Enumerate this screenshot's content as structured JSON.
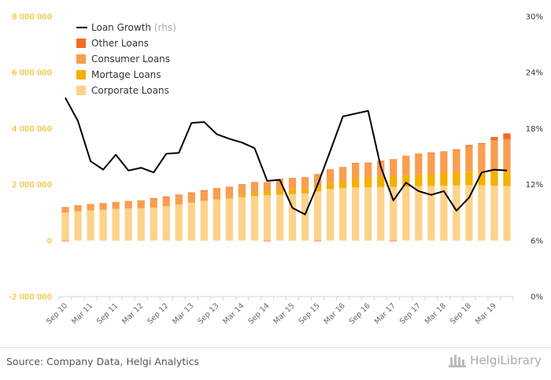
{
  "chart_data": {
    "type": "bar",
    "subtype": "stacked bar with line on secondary axis",
    "categories": [
      "Sep 10",
      "Dec 10",
      "Mar 11",
      "Jun 11",
      "Sep 11",
      "Dec 11",
      "Mar 12",
      "Jun 12",
      "Sep 12",
      "Dec 12",
      "Mar 13",
      "Jun 13",
      "Sep 13",
      "Dec 13",
      "Mar 14",
      "Jun 14",
      "Sep 14",
      "Dec 14",
      "Mar 15",
      "Jun 15",
      "Sep 15",
      "Dec 15",
      "Mar 16",
      "Jun 16",
      "Sep 16",
      "Dec 16",
      "Mar 17",
      "Jun 17",
      "Sep 17",
      "Dec 17",
      "Mar 18",
      "Jun 18",
      "Sep 18",
      "Dec 18",
      "Mar 19",
      "Jun 19"
    ],
    "x_tick_labels": [
      "Sep 10",
      "Mar 11",
      "Sep 11",
      "Mar 12",
      "Sep 12",
      "Mar 13",
      "Sep 13",
      "Mar 14",
      "Sep 14",
      "Mar 15",
      "Sep 15",
      "Mar 16",
      "Sep 16",
      "Mar 17",
      "Sep 17",
      "Mar 18",
      "Sep 18",
      "Mar 19"
    ],
    "series": [
      {
        "name": "Corporate Loans",
        "color": "#fdd28a",
        "values": [
          1000000,
          1050000,
          1080000,
          1100000,
          1130000,
          1150000,
          1160000,
          1180000,
          1230000,
          1290000,
          1360000,
          1420000,
          1470000,
          1500000,
          1550000,
          1590000,
          1620000,
          1640000,
          1660000,
          1680000,
          1760000,
          1840000,
          1880000,
          1900000,
          1910000,
          1910000,
          1920000,
          1930000,
          1940000,
          1950000,
          1960000,
          1970000,
          1980000,
          1970000,
          1960000,
          1950000
        ]
      },
      {
        "name": "Mortage Loans",
        "color": "#f5b000",
        "values": [
          0,
          0,
          0,
          0,
          0,
          0,
          0,
          0,
          0,
          0,
          0,
          0,
          0,
          0,
          50000,
          100000,
          170000,
          190000,
          180000,
          190000,
          170000,
          180000,
          250000,
          300000,
          350000,
          370000,
          390000,
          400000,
          420000,
          430000,
          450000,
          470000,
          480000,
          500000,
          520000,
          530000
        ]
      },
      {
        "name": "Consumer Loans",
        "color": "#f99e4f",
        "values": [
          200000,
          215000,
          225000,
          240000,
          250000,
          265000,
          280000,
          300000,
          315000,
          330000,
          340000,
          360000,
          380000,
          400000,
          390000,
          380000,
          300000,
          350000,
          400000,
          400000,
          450000,
          500000,
          500000,
          550000,
          500000,
          550000,
          600000,
          700000,
          750000,
          750000,
          780000,
          800000,
          900000,
          980000,
          1100000,
          1140000
        ]
      },
      {
        "name": "Other Loans",
        "color": "#f26b25",
        "values": [
          -20000,
          0,
          0,
          0,
          0,
          0,
          0,
          30000,
          30000,
          20000,
          20000,
          20000,
          20000,
          20000,
          20000,
          20000,
          -20000,
          20000,
          0,
          0,
          -20000,
          20000,
          0,
          20000,
          20000,
          20000,
          -20000,
          0,
          0,
          20000,
          0,
          20000,
          50000,
          30000,
          120000,
          210000
        ]
      },
      {
        "name": "Loan Growth",
        "color": "#000000",
        "axis": "right",
        "note": "(rhs)",
        "values": [
          21.3,
          18.8,
          14.5,
          13.6,
          15.2,
          13.5,
          13.8,
          13.3,
          15.3,
          15.4,
          18.6,
          18.7,
          17.4,
          16.9,
          16.5,
          15.9,
          12.4,
          12.5,
          9.5,
          8.8,
          12.0,
          15.6,
          19.3,
          19.6,
          19.9,
          13.9,
          10.3,
          12.2,
          11.3,
          10.9,
          11.3,
          9.2,
          10.6,
          13.3,
          13.6,
          13.5
        ]
      }
    ],
    "yleft_ticks": [
      "8 000 000",
      "6 000 000",
      "4 000 000",
      "2 000 000",
      "0",
      "-2 000 000"
    ],
    "yright_ticks": [
      "30%",
      "24%",
      "18%",
      "12%",
      "6%",
      "0%"
    ],
    "ylim_left": [
      -2000000,
      8000000
    ],
    "ylim_right": [
      0,
      30
    ],
    "legend_position": "top-left",
    "grid": false
  },
  "footer": {
    "source": "Source: Company Data, Helgi Analytics",
    "brand": "HelgiLibrary"
  },
  "colors": {
    "left_axis": "#f5b000",
    "right_axis": "#333333",
    "background": "#ffffff"
  }
}
